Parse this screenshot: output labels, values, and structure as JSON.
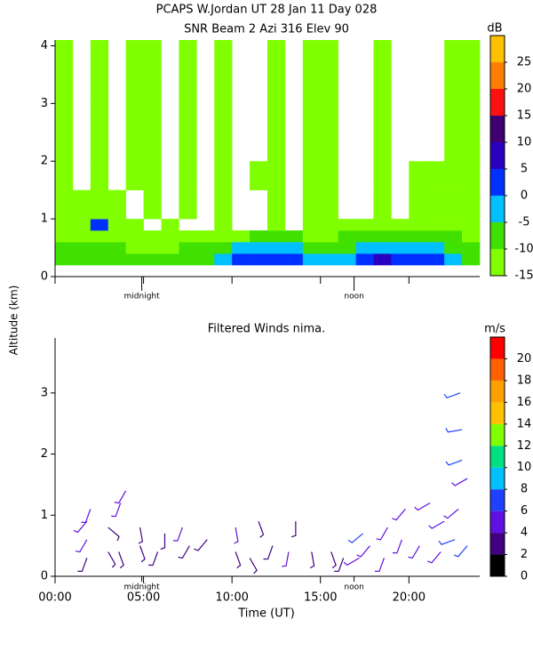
{
  "chart_data": [
    {
      "type": "heatmap",
      "title": "PCAPS W.Jordan UT  28 Jan 11 Day 028",
      "subtitle": "SNR Beam 2 Azi 316 Elev 90",
      "ylabel": "Altitude (km)",
      "xlim": [
        0,
        24
      ],
      "xticks": [
        0,
        5,
        10,
        15,
        20
      ],
      "ylim": [
        0,
        4.1
      ],
      "yticks": [
        0,
        1,
        2,
        3,
        4
      ],
      "annotations": [
        {
          "text": "midnight",
          "x": 4.9
        },
        {
          "text": "noon",
          "x": 16.9
        }
      ],
      "x_edges": [
        0,
        1,
        2,
        3,
        4,
        5,
        6,
        7,
        8,
        9,
        10,
        11,
        12,
        13,
        14,
        15,
        16,
        17,
        18,
        19,
        20,
        21,
        22,
        23,
        24
      ],
      "y_edges": [
        0.2,
        0.4,
        0.6,
        0.8,
        1.0,
        1.5,
        2.0,
        3.0,
        4.1
      ],
      "values": [
        [
          -8,
          -8,
          -8,
          -8,
          -8,
          -8,
          -8,
          -8,
          -7,
          -5,
          2,
          3,
          1,
          3,
          -3,
          -3,
          -5,
          4,
          5,
          3,
          4,
          2,
          -3,
          -6
        ],
        [
          -10,
          -10,
          -10,
          -10,
          -12,
          -11,
          -11,
          -10,
          -10,
          -8,
          -5,
          -4,
          -3,
          -2,
          -6,
          -6,
          -8,
          -4,
          -3,
          -2,
          -4,
          -5,
          -7,
          -9
        ],
        [
          -12,
          -12,
          -13,
          -13,
          -14,
          -13,
          -13,
          -13,
          -13,
          -12,
          -11,
          -10,
          -10,
          -10,
          -11,
          -11,
          -10,
          -9,
          -9,
          -8,
          -9,
          -9,
          -10,
          -11
        ],
        [
          -13,
          -12,
          3,
          -13,
          -14,
          null,
          -14,
          null,
          null,
          -14,
          null,
          null,
          -14,
          null,
          -14,
          -14,
          -13,
          -12,
          -12,
          -12,
          -12,
          -12,
          -12,
          -12
        ],
        [
          -13,
          -14,
          -13,
          -14,
          null,
          -14,
          null,
          -14,
          null,
          -14,
          null,
          null,
          -14,
          null,
          -14,
          -14,
          null,
          null,
          -14,
          null,
          -13,
          -12,
          -11,
          -12
        ],
        [
          -14,
          null,
          -14,
          null,
          -14,
          -14,
          null,
          -14,
          null,
          -14,
          null,
          -14,
          -14,
          null,
          -14,
          -14,
          null,
          null,
          -14,
          null,
          -14,
          -13,
          -12,
          -14
        ],
        [
          -14,
          null,
          -14,
          null,
          -14,
          -14,
          null,
          -14,
          null,
          -14,
          null,
          null,
          -14,
          null,
          -14,
          -14,
          null,
          null,
          -14,
          null,
          null,
          null,
          -13,
          -14
        ],
        [
          -14,
          null,
          -14,
          null,
          -14,
          -14,
          null,
          -14,
          null,
          -14,
          null,
          null,
          -14,
          null,
          -14,
          -14,
          null,
          null,
          -14,
          null,
          null,
          null,
          -14,
          -14
        ]
      ],
      "colorbar": {
        "label": "dB",
        "lim": [
          -15,
          30
        ],
        "ticks": [
          -15,
          -10,
          -5,
          0,
          5,
          10,
          15,
          20,
          25
        ],
        "colors": [
          "#80ff00",
          "#40e000",
          "#00c0ff",
          "#0030ff",
          "#2a00c0",
          "#400070",
          "#ff1010",
          "#ff8000",
          "#ffc000"
        ]
      }
    },
    {
      "type": "barbs",
      "title": "Filtered Winds nima.",
      "xlabel": "Time (UT)",
      "xlim": [
        0,
        24
      ],
      "xticks": [
        {
          "value": 0,
          "label": "00:00"
        },
        {
          "value": 5,
          "label": "05:00"
        },
        {
          "value": 10,
          "label": "10:00"
        },
        {
          "value": 15,
          "label": "15:00"
        },
        {
          "value": 20,
          "label": "20:00"
        }
      ],
      "ylim": [
        0,
        3.9
      ],
      "yticks": [
        0,
        1,
        2,
        3
      ],
      "annotations": [
        {
          "text": "midnight",
          "x": 4.9
        },
        {
          "text": "noon",
          "x": 16.9
        }
      ],
      "winds": {
        "x": [
          1.8,
          1.8,
          1.8,
          2.0,
          3.0,
          3.0,
          3.6,
          3.7,
          4.0,
          4.8,
          4.8,
          5.8,
          6.2,
          7.2,
          7.6,
          8.6,
          10.2,
          10.2,
          11.0,
          11.5,
          12.3,
          13.2,
          13.6,
          14.5,
          15.6,
          16.3,
          17.2,
          17.4,
          17.8,
          18.6,
          18.8,
          19.6,
          19.8,
          20.6,
          21.2,
          21.8,
          22.0,
          22.6,
          22.8,
          23.3,
          23.3,
          23.0,
          23.0,
          22.9
        ],
        "y": [
          0.3,
          0.6,
          0.9,
          1.1,
          0.4,
          0.8,
          0.4,
          1.2,
          1.4,
          0.5,
          0.8,
          0.4,
          0.7,
          0.8,
          0.5,
          0.6,
          0.4,
          0.8,
          0.3,
          0.9,
          0.5,
          0.4,
          0.9,
          0.4,
          0.4,
          0.3,
          0.3,
          0.7,
          0.5,
          0.3,
          0.8,
          0.6,
          1.1,
          0.5,
          1.2,
          0.4,
          0.9,
          0.6,
          1.1,
          0.5,
          1.6,
          1.9,
          2.4,
          3.0
        ],
        "speed": [
          3,
          4,
          4,
          5,
          3,
          3,
          3,
          4,
          4,
          3,
          3,
          3,
          3,
          4,
          3,
          3,
          3,
          4,
          3,
          3,
          3,
          4,
          3,
          3,
          3,
          3,
          5,
          6,
          5,
          4,
          5,
          4,
          5,
          4,
          4,
          5,
          5,
          6,
          5,
          6,
          5,
          7,
          7,
          7
        ],
        "direction": [
          200,
          210,
          220,
          200,
          150,
          130,
          160,
          200,
          210,
          160,
          170,
          200,
          180,
          200,
          210,
          220,
          160,
          170,
          150,
          160,
          200,
          190,
          180,
          170,
          160,
          200,
          240,
          230,
          220,
          200,
          210,
          200,
          220,
          210,
          240,
          220,
          240,
          250,
          230,
          220,
          240,
          250,
          260,
          250
        ]
      },
      "colorbar": {
        "label": "m/s",
        "lim": [
          0,
          22
        ],
        "ticks": [
          0,
          2,
          4,
          6,
          8,
          10,
          12,
          14,
          16,
          18,
          20
        ],
        "colors": [
          "#000000",
          "#400080",
          "#6010e0",
          "#2040ff",
          "#00c0ff",
          "#00e080",
          "#80ff00",
          "#ffc000",
          "#ffa000",
          "#ff6000",
          "#ff0000"
        ]
      }
    }
  ]
}
